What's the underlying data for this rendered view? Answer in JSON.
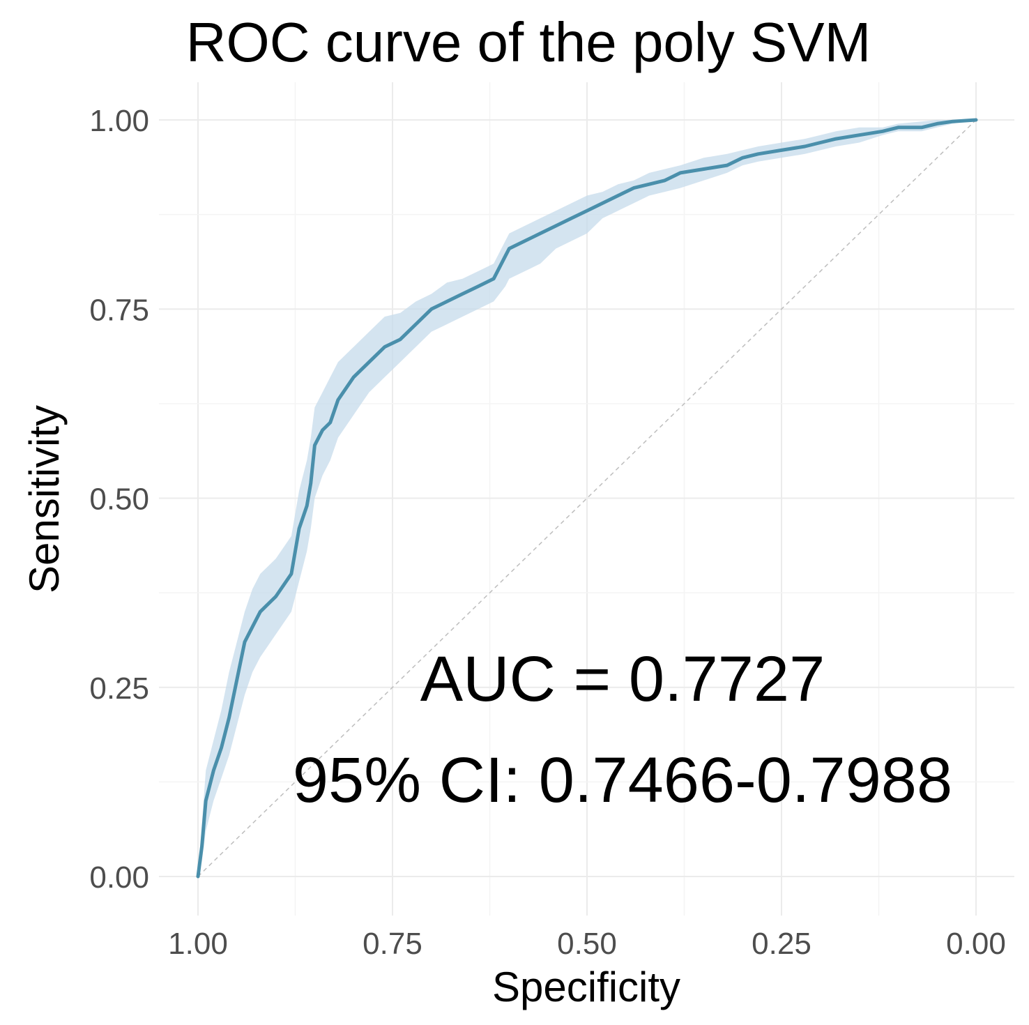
{
  "chart_data": {
    "type": "line",
    "title": "ROC curve of the poly SVM",
    "xlabel": "Specificity",
    "ylabel": "Sensitivity",
    "xlim": [
      1.0,
      0.0
    ],
    "ylim": [
      0.0,
      1.0
    ],
    "x_reversed": true,
    "xticks": [
      1.0,
      0.75,
      0.5,
      0.25,
      0.0
    ],
    "xtick_labels": [
      "1.00",
      "0.75",
      "0.50",
      "0.25",
      "0.00"
    ],
    "yticks": [
      0.0,
      0.25,
      0.5,
      0.75,
      1.0
    ],
    "ytick_labels": [
      "0.00",
      "0.25",
      "0.50",
      "0.75",
      "1.00"
    ],
    "grid": true,
    "line_color": "#4a8fab",
    "band_color": "#c6dbeb",
    "diagonal_color": "#bdbdbd",
    "series": [
      {
        "name": "ROC",
        "specificity": [
          1.0,
          0.995,
          0.99,
          0.98,
          0.97,
          0.96,
          0.95,
          0.94,
          0.93,
          0.92,
          0.9,
          0.88,
          0.87,
          0.86,
          0.855,
          0.85,
          0.84,
          0.83,
          0.82,
          0.8,
          0.78,
          0.76,
          0.74,
          0.72,
          0.7,
          0.68,
          0.66,
          0.64,
          0.62,
          0.605,
          0.6,
          0.58,
          0.56,
          0.54,
          0.52,
          0.5,
          0.48,
          0.46,
          0.44,
          0.42,
          0.4,
          0.38,
          0.35,
          0.32,
          0.3,
          0.28,
          0.25,
          0.22,
          0.2,
          0.18,
          0.15,
          0.12,
          0.1,
          0.07,
          0.05,
          0.03,
          0.0
        ],
        "sensitivity": [
          0.0,
          0.04,
          0.1,
          0.14,
          0.17,
          0.21,
          0.26,
          0.31,
          0.33,
          0.35,
          0.37,
          0.4,
          0.46,
          0.49,
          0.52,
          0.57,
          0.59,
          0.6,
          0.63,
          0.66,
          0.68,
          0.7,
          0.71,
          0.73,
          0.75,
          0.76,
          0.77,
          0.78,
          0.79,
          0.82,
          0.83,
          0.84,
          0.85,
          0.86,
          0.87,
          0.88,
          0.89,
          0.9,
          0.91,
          0.915,
          0.92,
          0.93,
          0.935,
          0.94,
          0.95,
          0.955,
          0.96,
          0.965,
          0.97,
          0.975,
          0.98,
          0.985,
          0.99,
          0.99,
          0.995,
          0.998,
          1.0
        ],
        "ci_lower": [
          0.0,
          0.02,
          0.06,
          0.1,
          0.13,
          0.16,
          0.2,
          0.24,
          0.27,
          0.29,
          0.32,
          0.35,
          0.39,
          0.43,
          0.46,
          0.5,
          0.53,
          0.55,
          0.58,
          0.61,
          0.64,
          0.66,
          0.68,
          0.7,
          0.72,
          0.73,
          0.74,
          0.75,
          0.76,
          0.78,
          0.79,
          0.8,
          0.81,
          0.83,
          0.84,
          0.85,
          0.87,
          0.88,
          0.89,
          0.9,
          0.905,
          0.91,
          0.92,
          0.93,
          0.94,
          0.945,
          0.95,
          0.955,
          0.96,
          0.965,
          0.97,
          0.98,
          0.985,
          0.985,
          0.99,
          0.995,
          1.0
        ],
        "ci_upper": [
          0.0,
          0.07,
          0.14,
          0.18,
          0.22,
          0.27,
          0.31,
          0.35,
          0.38,
          0.4,
          0.42,
          0.45,
          0.51,
          0.55,
          0.58,
          0.62,
          0.64,
          0.66,
          0.68,
          0.7,
          0.72,
          0.74,
          0.745,
          0.76,
          0.77,
          0.785,
          0.79,
          0.8,
          0.81,
          0.84,
          0.85,
          0.86,
          0.87,
          0.88,
          0.89,
          0.9,
          0.905,
          0.915,
          0.92,
          0.93,
          0.935,
          0.94,
          0.95,
          0.955,
          0.96,
          0.965,
          0.97,
          0.975,
          0.98,
          0.985,
          0.99,
          0.99,
          0.995,
          0.998,
          1.0,
          1.0,
          1.0
        ]
      }
    ],
    "annotations": {
      "auc": "AUC = 0.7727",
      "ci": "95% CI: 0.7466-0.7988"
    }
  }
}
